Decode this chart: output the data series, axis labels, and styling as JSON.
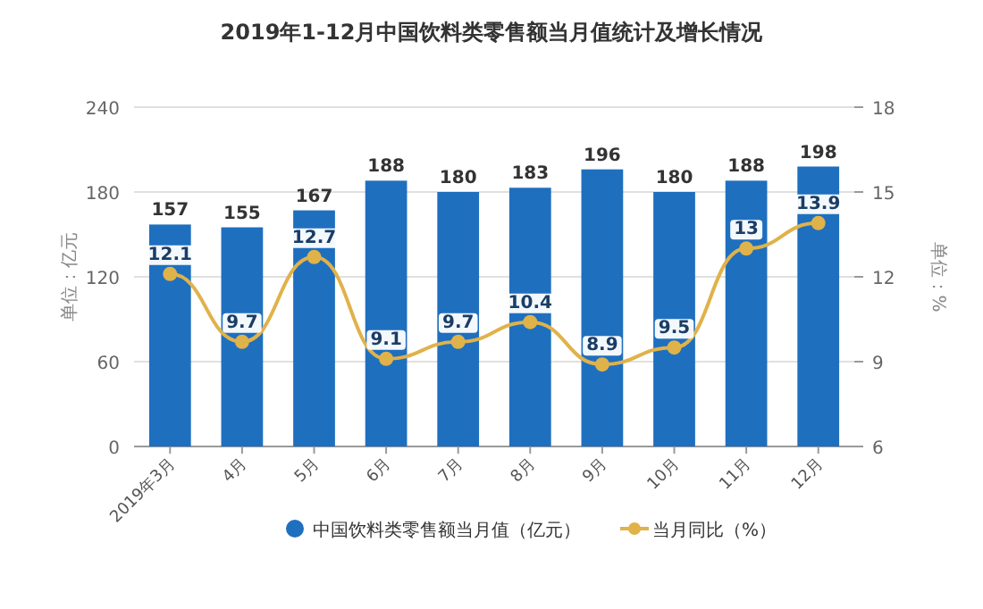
{
  "chart_data": {
    "type": "bar",
    "title": "2019年1-12月中国饮料类零售额当月值统计及增长情况",
    "categories": [
      "2019年3月",
      "4月",
      "5月",
      "6月",
      "7月",
      "8月",
      "9月",
      "10月",
      "11月",
      "12月"
    ],
    "series": [
      {
        "name": "中国饮料类零售额当月值（亿元）",
        "color": "#1f6fbf",
        "values": [
          157,
          155,
          167,
          188,
          180,
          183,
          196,
          180,
          188,
          198
        ]
      },
      {
        "name": "当月同比（%）",
        "type": "line",
        "axis": "y2",
        "color": "#e0b24a",
        "marker": "circle",
        "values": [
          12.1,
          9.7,
          12.7,
          9.1,
          9.7,
          10.4,
          8.9,
          9.5,
          13,
          13.9
        ]
      }
    ],
    "ylabel": "单位：亿元",
    "y2label": "单位：%",
    "ylim": [
      0,
      240
    ],
    "yticks": [
      0,
      60,
      120,
      180,
      240
    ],
    "y2lim": [
      6,
      18
    ],
    "y2ticks": [
      6,
      9,
      12,
      15,
      18
    ],
    "grid": "y",
    "legend": "bottom",
    "data_labels": true
  }
}
